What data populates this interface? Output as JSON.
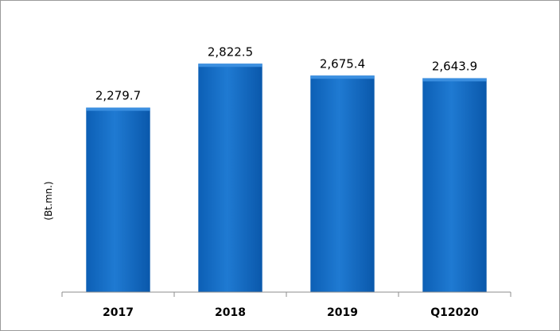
{
  "chart_data": {
    "type": "bar",
    "categories": [
      "2017",
      "2018",
      "2019",
      "Q12020"
    ],
    "values": [
      2279.7,
      2822.5,
      2675.4,
      2643.9
    ],
    "data_labels": [
      "2,279.7",
      "2,822.5",
      "2,675.4",
      "2,643.9"
    ],
    "ylabel": "(Bt.mn.)",
    "ylim": [
      0,
      3600
    ],
    "grid": false,
    "legend": "none",
    "bar_color": "#1a73c9",
    "bar_top_color": "#0b5fb8"
  }
}
